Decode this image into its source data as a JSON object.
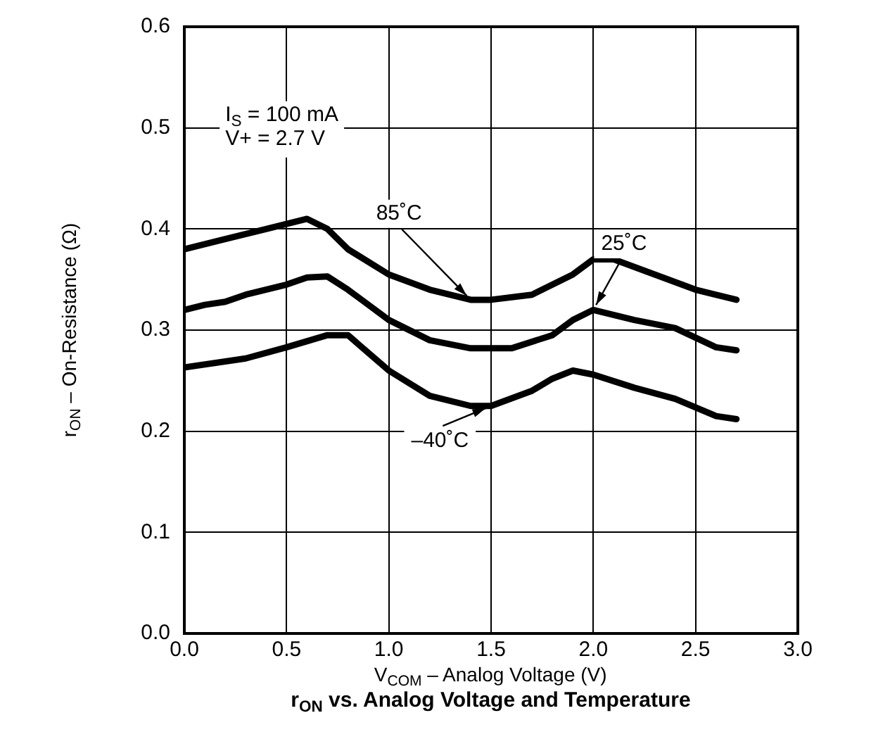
{
  "chart_data": {
    "type": "line",
    "title": "r$_{ON}$ vs. Analog Voltage and Temperature",
    "xlabel": "V$_{COM}$ – Analog Voltage (V)",
    "ylabel": "r$_{ON}$ – On-Resistance (Ω)",
    "annotations": [
      "I$_{S}$ = 100 mA",
      "V+ = 2.7 V"
    ],
    "series": [
      {
        "name": "85˚C",
        "color": "#000000",
        "x": [
          0,
          0.2,
          0.4,
          0.6,
          0.7,
          0.8,
          1.0,
          1.2,
          1.4,
          1.5,
          1.7,
          1.9,
          2.0,
          2.1,
          2.3,
          2.5,
          2.7
        ],
        "values": [
          0.38,
          0.39,
          0.4,
          0.41,
          0.4,
          0.38,
          0.355,
          0.34,
          0.33,
          0.33,
          0.335,
          0.355,
          0.37,
          0.37,
          0.355,
          0.34,
          0.33
        ]
      },
      {
        "name": "25˚C",
        "color": "#000000",
        "x": [
          0,
          0.1,
          0.2,
          0.3,
          0.5,
          0.6,
          0.7,
          0.8,
          1.0,
          1.2,
          1.4,
          1.6,
          1.8,
          1.9,
          2.0,
          2.2,
          2.4,
          2.6,
          2.7
        ],
        "values": [
          0.32,
          0.325,
          0.328,
          0.335,
          0.345,
          0.352,
          0.353,
          0.34,
          0.31,
          0.29,
          0.282,
          0.282,
          0.295,
          0.31,
          0.32,
          0.31,
          0.302,
          0.283,
          0.28
        ]
      },
      {
        "name": "–40˚C",
        "color": "#000000",
        "x": [
          0,
          0.3,
          0.5,
          0.7,
          0.8,
          1.0,
          1.2,
          1.4,
          1.5,
          1.7,
          1.8,
          1.9,
          2.0,
          2.2,
          2.4,
          2.6,
          2.7
        ],
        "values": [
          0.263,
          0.272,
          0.283,
          0.295,
          0.295,
          0.26,
          0.235,
          0.225,
          0.225,
          0.24,
          0.252,
          0.26,
          0.256,
          0.243,
          0.232,
          0.215,
          0.212
        ]
      }
    ],
    "xlim": [
      0,
      3
    ],
    "xticks": [
      {
        "value": 0,
        "label": "0.0"
      },
      {
        "value": 0.5,
        "label": "0.5"
      },
      {
        "value": 1,
        "label": "1.0"
      },
      {
        "value": 1.5,
        "label": "1.5"
      },
      {
        "value": 2,
        "label": "2.0"
      },
      {
        "value": 2.5,
        "label": "2.5"
      },
      {
        "value": 3,
        "label": "3.0"
      }
    ],
    "ylim": [
      0,
      0.6
    ],
    "yticks": [
      {
        "value": 0,
        "label": "0.0"
      },
      {
        "value": 0.1,
        "label": "0.1"
      },
      {
        "value": 0.2,
        "label": "0.2"
      },
      {
        "value": 0.3,
        "label": "0.3"
      },
      {
        "value": 0.4,
        "label": "0.4"
      },
      {
        "value": 0.5,
        "label": "0.5"
      },
      {
        "value": 0.6,
        "label": "0.6"
      }
    ],
    "grid": true,
    "marker": "none",
    "line_style": "solid"
  }
}
